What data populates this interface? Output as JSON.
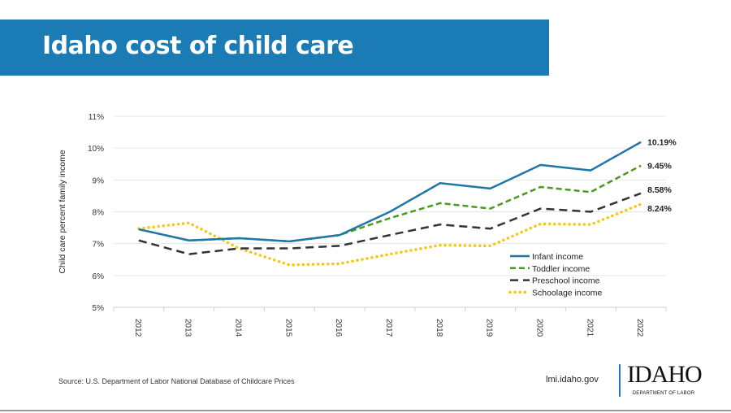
{
  "title": "Idaho cost of child care",
  "footer": {
    "source": "Source: U.S. Department of Labor National Database of Childcare Prices",
    "site": "lmi.idaho.gov",
    "logo_text": "IDAHO",
    "logo_subtext": "DEPARTMENT OF LABOR"
  },
  "colors": {
    "banner": "#1b7bb4"
  },
  "chart_data": {
    "type": "line",
    "title": "",
    "xlabel": "",
    "ylabel": "Child care percent family income",
    "ylim": [
      5,
      11
    ],
    "yticks": [
      "5%",
      "6%",
      "7%",
      "8%",
      "9%",
      "10%",
      "11%"
    ],
    "grid": true,
    "legend_position": "bottom-right",
    "categories": [
      "2012",
      "2013",
      "2014",
      "2015",
      "2016",
      "2017",
      "2018",
      "2019",
      "2020",
      "2021",
      "2022"
    ],
    "series": [
      {
        "name": "Infant income",
        "color": "#1f77a8",
        "style": "solid",
        "values": [
          7.45,
          7.1,
          7.17,
          7.07,
          7.27,
          8.0,
          8.9,
          8.73,
          9.47,
          9.3,
          10.19
        ],
        "end_label": "10.19%"
      },
      {
        "name": "Toddler income",
        "color": "#4a9a1e",
        "style": "dashed",
        "values": [
          7.45,
          7.1,
          7.17,
          7.07,
          7.27,
          7.8,
          8.27,
          8.1,
          8.78,
          8.62,
          9.45
        ],
        "end_label": "9.45%"
      },
      {
        "name": "Preschool income",
        "color": "#333333",
        "style": "longdash",
        "values": [
          7.1,
          6.67,
          6.85,
          6.85,
          6.93,
          7.27,
          7.6,
          7.47,
          8.1,
          8.0,
          8.58
        ],
        "end_label": "8.58%"
      },
      {
        "name": "Schoolage income",
        "color": "#f2c811",
        "style": "dotted",
        "values": [
          7.47,
          7.65,
          6.85,
          6.33,
          6.37,
          6.67,
          6.95,
          6.93,
          7.62,
          7.6,
          8.24
        ],
        "end_label": "8.24%"
      }
    ]
  }
}
